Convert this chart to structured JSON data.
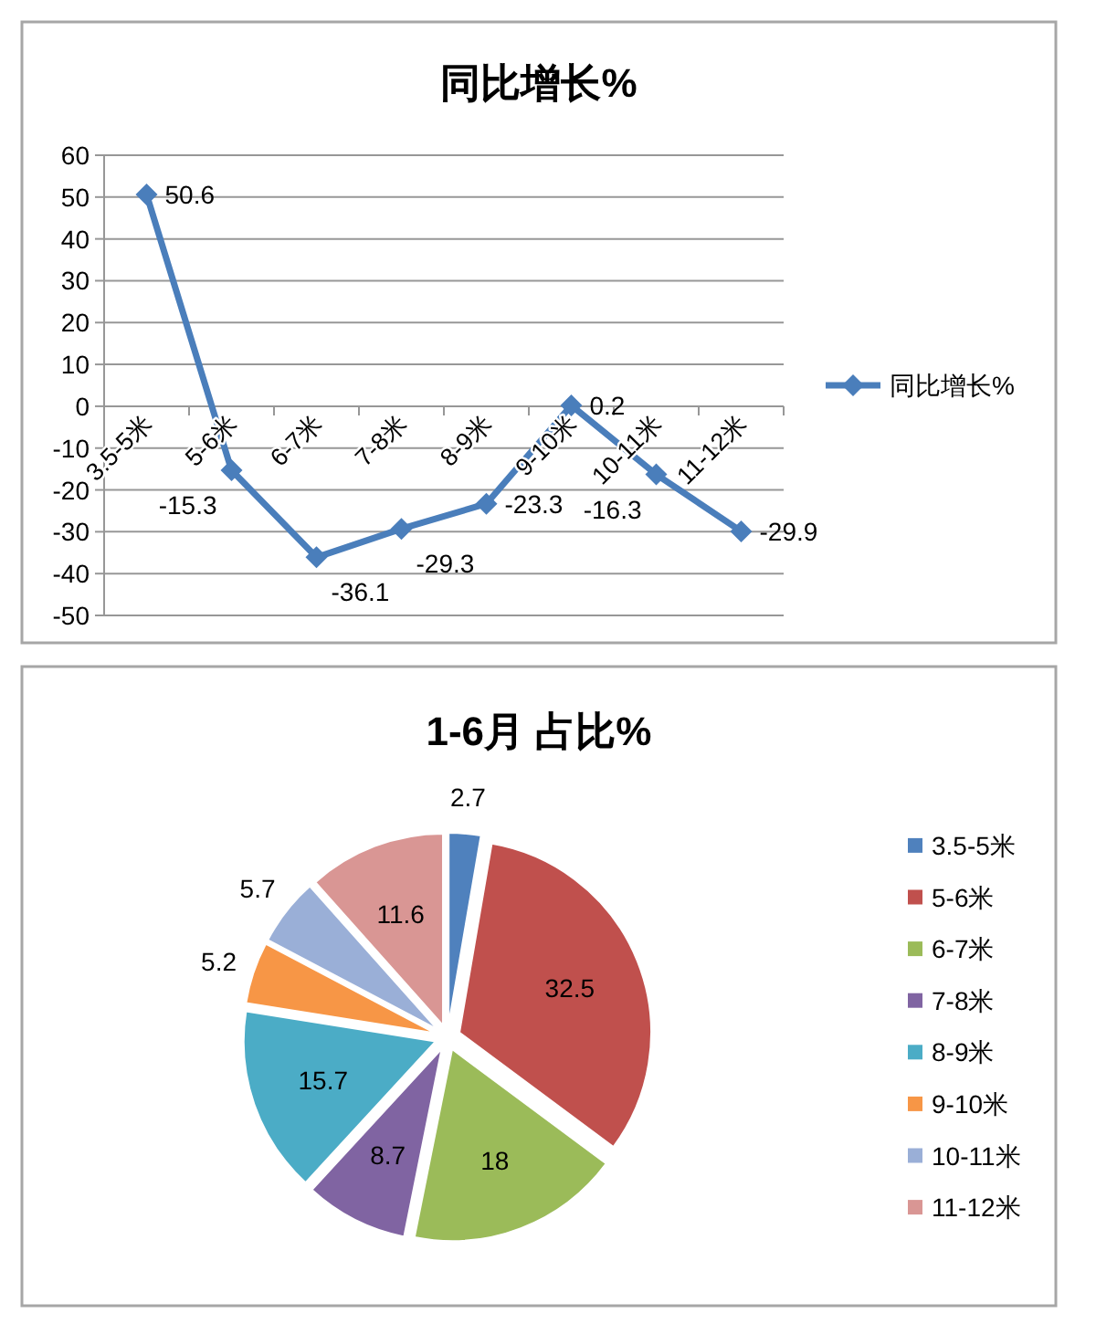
{
  "chart_data": [
    {
      "type": "line",
      "title": "同比增长%",
      "categories": [
        "3.5-5米",
        "5-6米",
        "6-7米",
        "7-8米",
        "8-9米",
        "9-10米",
        "10-11米",
        "11-12米"
      ],
      "series": [
        {
          "name": "同比增长%",
          "color": "#4a7ebb",
          "values": [
            50.6,
            -15.3,
            -36.1,
            -29.3,
            -23.3,
            0.2,
            -16.3,
            -29.9
          ]
        }
      ],
      "ylim": [
        -50,
        60
      ],
      "yticks": [
        -50,
        -40,
        -30,
        -20,
        -10,
        0,
        10,
        20,
        30,
        40,
        50,
        60
      ],
      "grid": "y",
      "legend": "right",
      "marker": "diamond",
      "line_style": "solid",
      "data_labels": true
    },
    {
      "type": "pie",
      "title": "1-6月 占比%",
      "categories": [
        "3.5-5米",
        "5-6米",
        "6-7米",
        "7-8米",
        "8-9米",
        "9-10米",
        "10-11米",
        "11-12米"
      ],
      "values": [
        2.7,
        32.5,
        18,
        8.7,
        15.7,
        5.2,
        5.7,
        11.6
      ],
      "colors": [
        "#4f81bd",
        "#c0504d",
        "#9bbb59",
        "#8064a2",
        "#4bacc6",
        "#f79646",
        "#9aafd7",
        "#d99694"
      ],
      "data_labels": true,
      "legend": "right"
    }
  ]
}
